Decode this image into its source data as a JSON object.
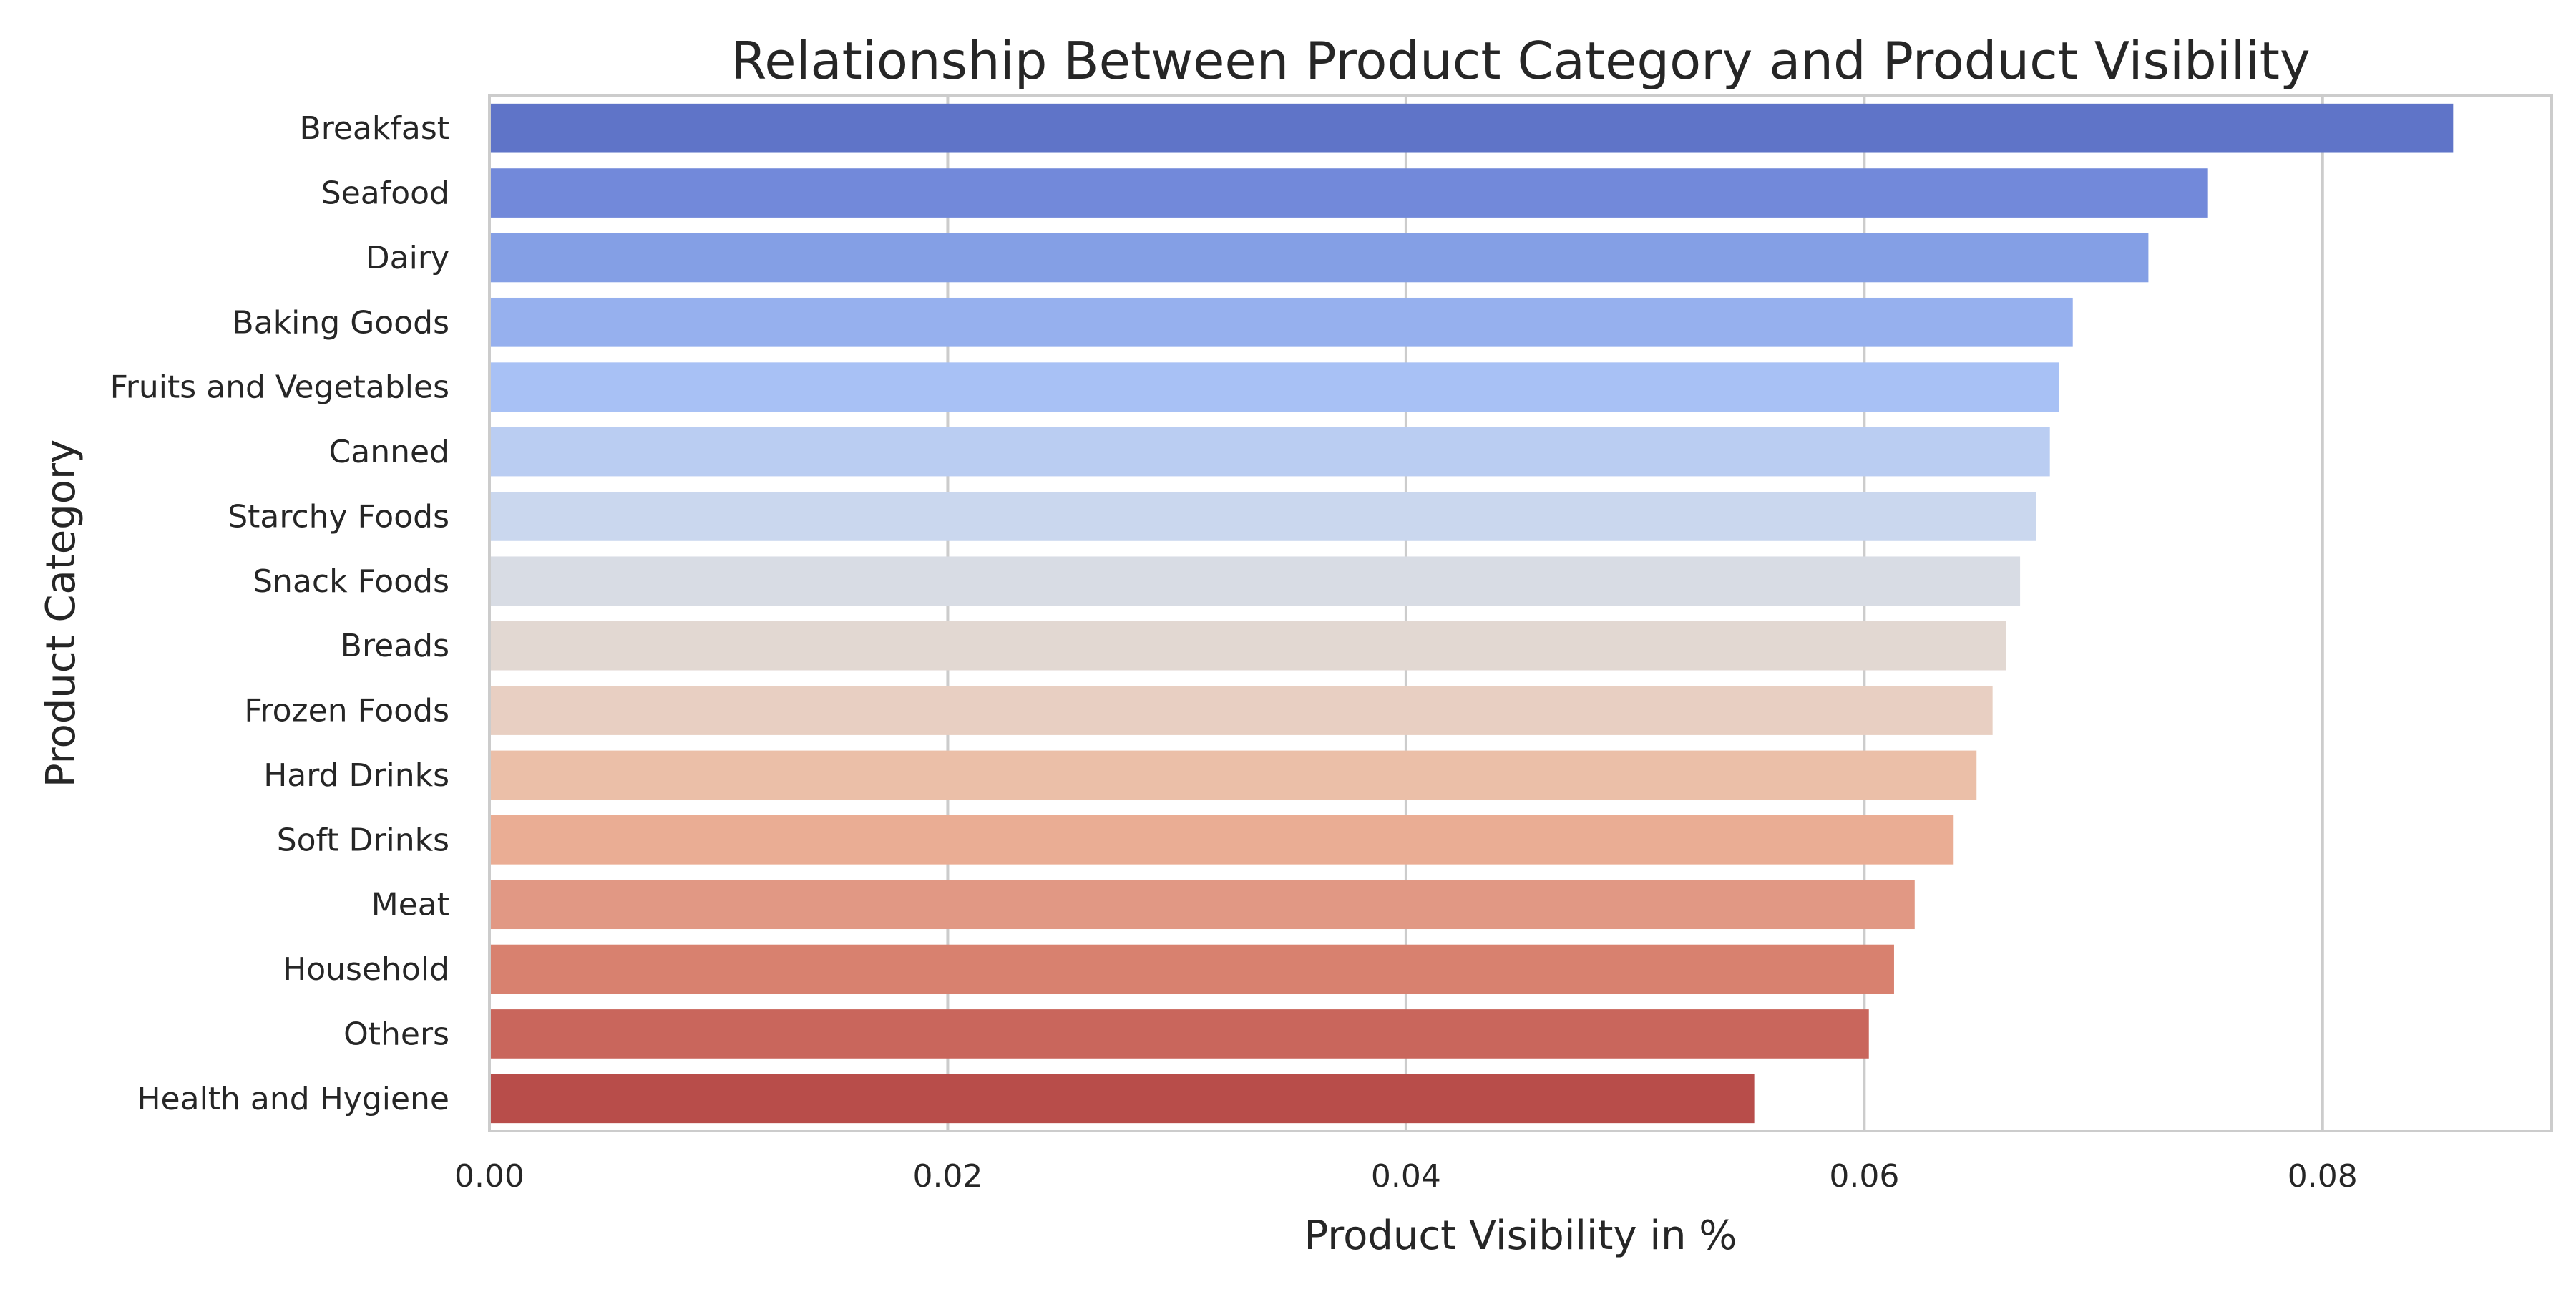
{
  "chart_data": {
    "type": "bar",
    "orientation": "horizontal",
    "title": "Relationship Between Product Category and Product Visibility",
    "xlabel": "Product Visibility in %",
    "ylabel": "Product Category",
    "xlim": [
      0,
      0.09
    ],
    "xticks": [
      0.0,
      0.02,
      0.04,
      0.06,
      0.08
    ],
    "xtick_labels": [
      "0.00",
      "0.02",
      "0.04",
      "0.06",
      "0.08"
    ],
    "grid": true,
    "categories": [
      "Breakfast",
      "Seafood",
      "Dairy",
      "Baking Goods",
      "Fruits and Vegetables",
      "Canned",
      "Starchy Foods",
      "Snack Foods",
      "Breads",
      "Frozen Foods",
      "Hard Drinks",
      "Soft Drinks",
      "Meat",
      "Household",
      "Others",
      "Health and Hygiene"
    ],
    "values": [
      0.0857,
      0.075,
      0.0724,
      0.0691,
      0.0685,
      0.0681,
      0.0675,
      0.0668,
      0.0662,
      0.0656,
      0.0649,
      0.0639,
      0.0622,
      0.0613,
      0.0602,
      0.0552
    ],
    "colors": [
      "#5f74c8",
      "#7289da",
      "#849fe5",
      "#96b0ee",
      "#a8c1f5",
      "#bacdf2",
      "#cad7ee",
      "#d8dce4",
      "#e2d8d2",
      "#e8cfc2",
      "#ebbfa8",
      "#eaad94",
      "#e19884",
      "#d8816f",
      "#c9665c",
      "#b84d4a"
    ]
  }
}
